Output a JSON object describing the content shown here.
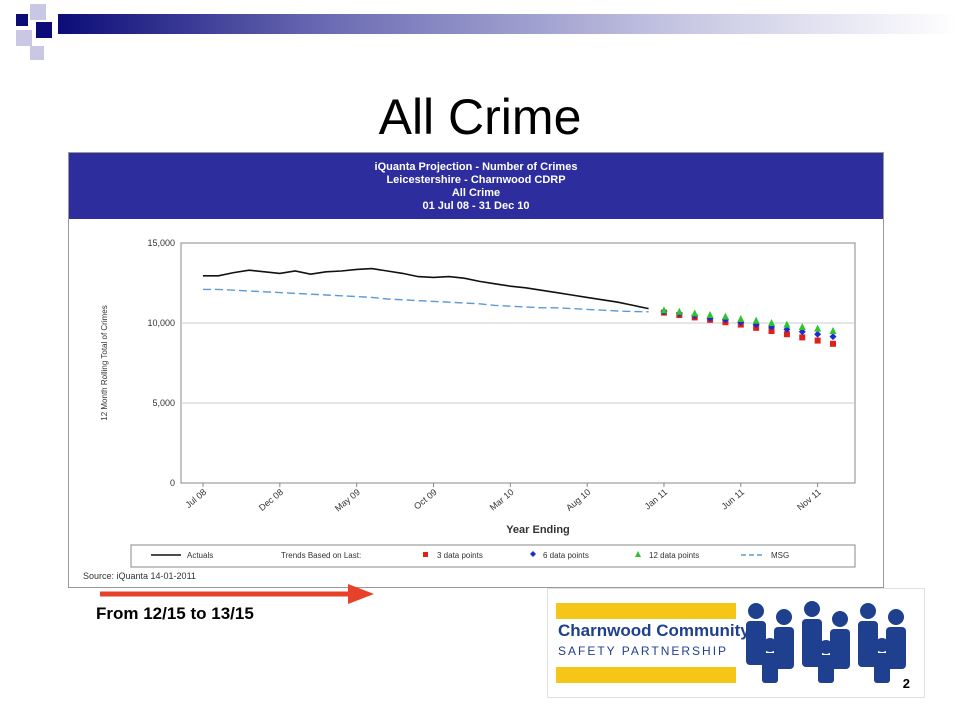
{
  "slide": {
    "title": "All Crime",
    "note": "From 12/15 to 13/15",
    "page_number": "2"
  },
  "logo": {
    "line1": "Charnwood Community",
    "line2": "SAFETY PARTNERSHIP",
    "brand_blue": "#1f3f8f",
    "brand_yellow": "#f5c518"
  },
  "colors": {
    "banner": "#2d2d9e",
    "arrow": "#e8412a",
    "actuals": "#111111",
    "msg": "#5b9bd5",
    "trend3": "#e0201a",
    "trend6": "#1a2ecc",
    "trend12": "#2fc42f"
  },
  "chart_data": {
    "type": "line",
    "title_lines": [
      "iQuanta Projection - Number of Crimes",
      "Leicestershire - Charnwood CDRP",
      "All Crime",
      "01 Jul 08 - 31 Dec 10"
    ],
    "xlabel": "Year Ending",
    "ylabel": "12 Month Rolling Total of Crimes",
    "ylim": [
      0,
      15000
    ],
    "yticks": [
      0,
      5000,
      10000,
      15000
    ],
    "ytick_labels": [
      "0",
      "5,000",
      "10,000",
      "15,000"
    ],
    "xtick_labels": [
      "Jul 08",
      "Dec 08",
      "May 09",
      "Oct 09",
      "Mar 10",
      "Aug 10",
      "Jan 11",
      "Jun 11",
      "Nov 11"
    ],
    "xtick_index": [
      0,
      5,
      10,
      15,
      20,
      25,
      30,
      35,
      40
    ],
    "grid": "horizontal",
    "months": 42,
    "series": [
      {
        "name": "Actuals",
        "kind": "line",
        "start_index": 0,
        "values": [
          12950,
          12950,
          13150,
          13300,
          13200,
          13100,
          13250,
          13050,
          13200,
          13250,
          13350,
          13400,
          13250,
          13100,
          12900,
          12850,
          12900,
          12800,
          12600,
          12450,
          12300,
          12200,
          12050,
          11900,
          11750,
          11600,
          11450,
          11300,
          11100,
          10900
        ]
      },
      {
        "name": "MSG",
        "kind": "dashed",
        "start_index": 0,
        "values": [
          12100,
          12100,
          12050,
          12000,
          11950,
          11900,
          11850,
          11800,
          11750,
          11700,
          11650,
          11600,
          11500,
          11450,
          11400,
          11350,
          11300,
          11250,
          11200,
          11100,
          11050,
          11000,
          10950,
          10950,
          10900,
          10850,
          10800,
          10750,
          10720,
          10700
        ]
      },
      {
        "name": "3 data points",
        "kind": "marker-square",
        "start_index": 30,
        "values": [
          10650,
          10500,
          10350,
          10200,
          10050,
          9900,
          9700,
          9500,
          9300,
          9100,
          8900,
          8700
        ]
      },
      {
        "name": "6 data points",
        "kind": "marker-diamond",
        "start_index": 30,
        "values": [
          10700,
          10600,
          10450,
          10300,
          10200,
          10050,
          9900,
          9750,
          9600,
          9450,
          9300,
          9150
        ]
      },
      {
        "name": "12 data points",
        "kind": "marker-triangle",
        "start_index": 30,
        "values": [
          10800,
          10700,
          10600,
          10500,
          10400,
          10250,
          10150,
          10000,
          9900,
          9750,
          9650,
          9500
        ]
      }
    ],
    "legend": {
      "position": "bottom",
      "actuals": "Actuals",
      "trends_prefix": "Trends Based on Last:",
      "trend3": "3 data points",
      "trend6": "6 data points",
      "trend12": "12 data points",
      "msg": "MSG"
    },
    "source": "Source: iQuanta 14-01-2011"
  }
}
